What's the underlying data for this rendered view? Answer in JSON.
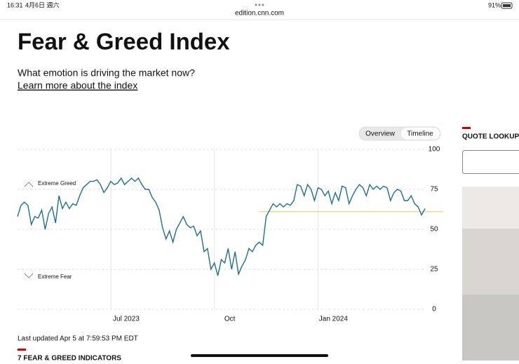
{
  "status_bar": {
    "time": "16:31",
    "date": "4月6日 週六",
    "url": "edition.cnn.com",
    "battery": "91%"
  },
  "header": {
    "title": "Fear & Greed Index",
    "subtitle": "What emotion is driving the market now?",
    "link": "Learn more about the index"
  },
  "tabs": [
    "Overview",
    "Timeline"
  ],
  "chart_data": {
    "type": "line",
    "color": "#1b6f96",
    "categories": [
      null,
      null,
      null,
      null,
      null,
      null,
      null,
      null,
      null,
      null,
      null,
      null,
      null,
      null,
      null,
      null,
      null,
      null,
      null,
      null,
      null,
      null,
      null,
      null,
      null,
      null,
      null,
      "Jul 2023",
      null,
      null,
      null,
      null,
      null,
      null,
      null,
      null,
      null,
      null,
      null,
      null,
      null,
      null,
      null,
      null,
      null,
      null,
      null,
      null,
      null,
      null,
      null,
      null,
      null,
      null,
      null,
      null,
      null,
      "Oct",
      null,
      null,
      null,
      null,
      null,
      null,
      null,
      null,
      null,
      null,
      null,
      null,
      null,
      null,
      null,
      null,
      null,
      null,
      null,
      null,
      null,
      null,
      null,
      null,
      null,
      null,
      null,
      null,
      null,
      "Jan 2024",
      null,
      null,
      null,
      null,
      null,
      null,
      null,
      null,
      null,
      null,
      null,
      null,
      null,
      null,
      null,
      null,
      null,
      null,
      null,
      null,
      null,
      null,
      null,
      null,
      null,
      null,
      null,
      null,
      null,
      null,
      null
    ],
    "values": [
      58,
      65,
      67,
      65,
      53,
      58,
      57,
      62,
      50,
      60,
      64,
      54,
      71,
      63,
      67,
      63,
      66,
      65,
      71,
      76,
      78,
      80,
      80,
      81,
      78,
      73,
      76,
      80,
      78,
      79,
      82,
      78,
      80,
      82,
      80,
      82,
      78,
      75,
      75,
      70,
      67,
      62,
      51,
      44,
      49,
      42,
      50,
      54,
      58,
      53,
      51,
      52,
      46,
      49,
      36,
      38,
      25,
      29,
      21,
      31,
      29,
      38,
      25,
      36,
      22,
      27,
      31,
      38,
      36,
      40,
      42,
      40,
      58,
      62,
      66,
      64,
      66,
      64,
      66,
      65,
      68,
      78,
      77,
      71,
      78,
      75,
      68,
      76,
      75,
      71,
      74,
      66,
      73,
      68,
      77,
      76,
      66,
      71,
      75,
      78,
      76,
      71,
      78,
      75,
      77,
      75,
      77,
      76,
      68,
      73,
      75,
      74,
      68,
      68,
      71,
      66,
      64,
      59,
      63
    ],
    "ylim": [
      0,
      100
    ],
    "yticks": [
      0,
      25,
      50,
      75,
      100
    ],
    "grid": true,
    "reference_line": {
      "value": 61,
      "color": "#f2c94c"
    },
    "zone_labels": [
      "Extreme Greed",
      "Extreme Fear"
    ],
    "footnote": "Last updated Apr 5 at 7:59:53 PM EDT"
  },
  "section_heading": "7 FEAR & GREED INDICATORS",
  "sidebar": {
    "heading": "QUOTE LOOKUP"
  }
}
